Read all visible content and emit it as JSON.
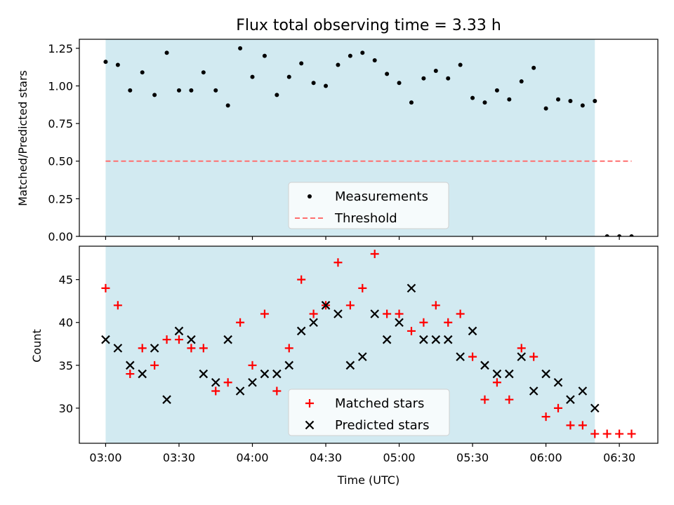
{
  "colors": {
    "shade": "#add8e6",
    "measurement": "#000000",
    "threshold": "#ff6f6f",
    "matched": "#ff0000",
    "predicted": "#000000"
  },
  "chart_data": [
    {
      "type": "scatter",
      "title": "Flux total observing time = 3.33 h",
      "xlabel": "",
      "ylabel": "Matched/Predicted stars",
      "ylim": [
        0,
        1.31
      ],
      "yticks": [
        "0.00",
        "0.25",
        "0.50",
        "0.75",
        "1.00",
        "1.25"
      ],
      "shaded_span": [
        "03:00",
        "06:20"
      ],
      "legend_placement": "lower-center",
      "series": [
        {
          "name": "Measurements",
          "marker": "dot",
          "x": [
            "03:00",
            "03:05",
            "03:10",
            "03:15",
            "03:20",
            "03:25",
            "03:30",
            "03:35",
            "03:40",
            "03:45",
            "03:50",
            "03:55",
            "04:00",
            "04:05",
            "04:10",
            "04:15",
            "04:20",
            "04:25",
            "04:30",
            "04:35",
            "04:40",
            "04:45",
            "04:50",
            "04:55",
            "05:00",
            "05:05",
            "05:10",
            "05:15",
            "05:20",
            "05:25",
            "05:30",
            "05:35",
            "05:40",
            "05:45",
            "05:50",
            "05:55",
            "06:00",
            "06:05",
            "06:10",
            "06:15",
            "06:20",
            "06:25",
            "06:30",
            "06:35"
          ],
          "values": [
            1.16,
            1.14,
            0.97,
            1.09,
            0.94,
            1.22,
            0.97,
            0.97,
            1.09,
            0.97,
            0.87,
            1.25,
            1.06,
            1.2,
            0.94,
            1.06,
            1.15,
            1.02,
            1.0,
            1.14,
            1.2,
            1.22,
            1.17,
            1.08,
            1.02,
            0.89,
            1.05,
            1.1,
            1.05,
            1.14,
            0.92,
            0.89,
            0.97,
            0.91,
            1.03,
            1.12,
            0.85,
            0.91,
            0.9,
            0.87,
            0.9,
            0.0,
            0.0,
            0.0
          ]
        },
        {
          "name": "Threshold",
          "marker": "dashed-line",
          "x": [
            "03:00",
            "06:35"
          ],
          "values": [
            0.5,
            0.5
          ]
        }
      ]
    },
    {
      "type": "scatter",
      "title": "",
      "xlabel": "Time (UTC)",
      "ylabel": "Count",
      "ylim": [
        25.9,
        48.9
      ],
      "yticks": [
        "30",
        "35",
        "40",
        "45"
      ],
      "xticks": [
        "03:00",
        "03:30",
        "04:00",
        "04:30",
        "05:00",
        "05:30",
        "06:00",
        "06:30"
      ],
      "shaded_span": [
        "03:00",
        "06:20"
      ],
      "legend_placement": "lower-center",
      "series": [
        {
          "name": "Matched stars",
          "marker": "plus",
          "x": [
            "03:00",
            "03:05",
            "03:10",
            "03:15",
            "03:20",
            "03:25",
            "03:30",
            "03:35",
            "03:40",
            "03:45",
            "03:50",
            "03:55",
            "04:00",
            "04:05",
            "04:10",
            "04:15",
            "04:20",
            "04:25",
            "04:30",
            "04:35",
            "04:40",
            "04:45",
            "04:50",
            "04:55",
            "05:00",
            "05:05",
            "05:10",
            "05:15",
            "05:20",
            "05:25",
            "05:30",
            "05:35",
            "05:40",
            "05:45",
            "05:50",
            "05:55",
            "06:00",
            "06:05",
            "06:10",
            "06:15",
            "06:20",
            "06:25",
            "06:30",
            "06:35"
          ],
          "values": [
            44,
            42,
            34,
            37,
            35,
            38,
            38,
            37,
            37,
            32,
            33,
            40,
            35,
            41,
            32,
            37,
            45,
            41,
            42,
            47,
            42,
            44,
            48,
            41,
            41,
            39,
            40,
            42,
            40,
            41,
            36,
            31,
            33,
            31,
            37,
            36,
            29,
            30,
            28,
            28,
            27,
            27,
            27,
            27
          ]
        },
        {
          "name": "Predicted stars",
          "marker": "x",
          "x": [
            "03:00",
            "03:05",
            "03:10",
            "03:15",
            "03:20",
            "03:25",
            "03:30",
            "03:35",
            "03:40",
            "03:45",
            "03:50",
            "03:55",
            "04:00",
            "04:05",
            "04:10",
            "04:15",
            "04:20",
            "04:25",
            "04:30",
            "04:35",
            "04:40",
            "04:45",
            "04:50",
            "04:55",
            "05:00",
            "05:05",
            "05:10",
            "05:15",
            "05:20",
            "05:25",
            "05:30",
            "05:35",
            "05:40",
            "05:45",
            "05:50",
            "05:55",
            "06:00",
            "06:05",
            "06:10",
            "06:15",
            "06:20"
          ],
          "values": [
            38,
            37,
            35,
            34,
            37,
            31,
            39,
            38,
            34,
            33,
            38,
            32,
            33,
            34,
            34,
            35,
            39,
            40,
            42,
            41,
            35,
            36,
            41,
            38,
            40,
            44,
            38,
            38,
            38,
            36,
            39,
            35,
            34,
            34,
            36,
            32,
            34,
            33,
            31,
            32,
            30
          ]
        }
      ]
    }
  ]
}
